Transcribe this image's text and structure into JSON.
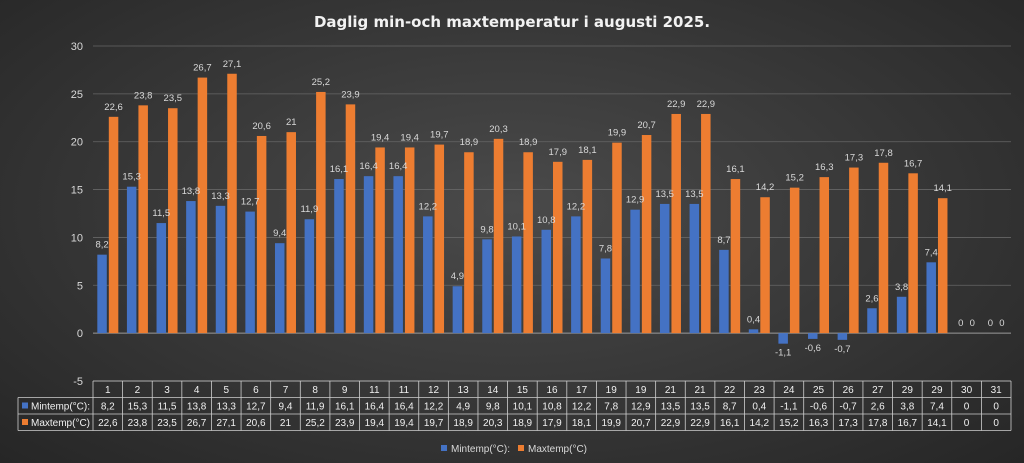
{
  "chart_data": {
    "type": "bar",
    "title": "Daglig min-och maxtemperatur i augusti 2025.",
    "ylim": [
      -5,
      30
    ],
    "yticks": [
      -5,
      0,
      5,
      10,
      15,
      20,
      25,
      30
    ],
    "grid": true,
    "legend_position": "bottom",
    "categories": [
      "1",
      "2",
      "3",
      "4",
      "5",
      "6",
      "7",
      "8",
      "9",
      "11",
      "11",
      "12",
      "13",
      "14",
      "15",
      "16",
      "17",
      "19",
      "19",
      "21",
      "21",
      "22",
      "23",
      "24",
      "25",
      "26",
      "27",
      "29",
      "29",
      "30",
      "31"
    ],
    "series": [
      {
        "name": "Mintemp(°C):",
        "color": "#4472c4",
        "values": [
          8.2,
          15.3,
          11.5,
          13.8,
          13.3,
          12.7,
          9.4,
          11.9,
          16.1,
          16.4,
          16.4,
          12.2,
          4.9,
          9.8,
          10.1,
          10.8,
          12.2,
          7.8,
          12.9,
          13.5,
          13.5,
          8.7,
          0.4,
          -1.1,
          -0.6,
          -0.7,
          2.6,
          3.8,
          7.4,
          0,
          0
        ],
        "labels": [
          "8,2",
          "15,3",
          "11,5",
          "13,8",
          "13,3",
          "12,7",
          "9,4",
          "11,9",
          "16,1",
          "16,4",
          "16,4",
          "12,2",
          "4,9",
          "9,8",
          "10,1",
          "10,8",
          "12,2",
          "7,8",
          "12,9",
          "13,5",
          "13,5",
          "8,7",
          "0,4",
          "-1,1",
          "-0,6",
          "-0,7",
          "2,6",
          "3,8",
          "7,4",
          "0",
          "0"
        ]
      },
      {
        "name": "Maxtemp(°C)",
        "color": "#ed7d31",
        "values": [
          22.6,
          23.8,
          23.5,
          26.7,
          27.1,
          20.6,
          21,
          25.2,
          23.9,
          19.4,
          19.4,
          19.7,
          18.9,
          20.3,
          18.9,
          17.9,
          18.1,
          19.9,
          20.7,
          22.9,
          22.9,
          16.1,
          14.2,
          15.2,
          16.3,
          17.3,
          17.8,
          16.7,
          14.1,
          0,
          0
        ],
        "labels": [
          "22,6",
          "23,8",
          "23,5",
          "26,7",
          "27,1",
          "20,6",
          "21",
          "25,2",
          "23,9",
          "19,4",
          "19,4",
          "19,7",
          "18,9",
          "20,3",
          "18,9",
          "17,9",
          "18,1",
          "19,9",
          "20,7",
          "22,9",
          "22,9",
          "16,1",
          "14,2",
          "15,2",
          "16,3",
          "17,3",
          "17,8",
          "16,7",
          "14,1",
          "0",
          "0"
        ]
      }
    ]
  }
}
